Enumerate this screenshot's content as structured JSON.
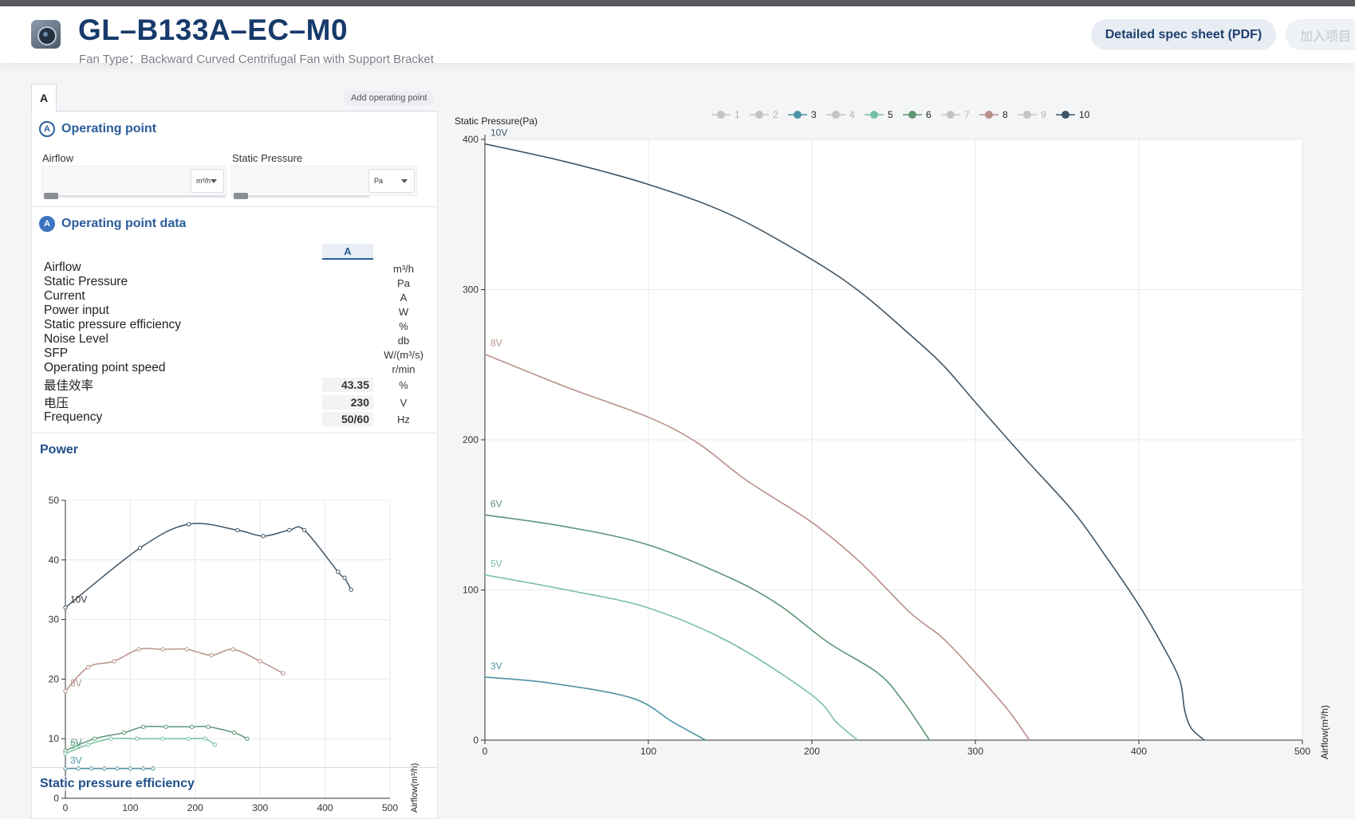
{
  "header": {
    "title": "GL–B133A–EC–M0",
    "subtitle": "Fan Type：Backward Curved Centrifugal Fan with Support Bracket",
    "pdf_button": "Detailed spec sheet (PDF)",
    "add_project_button": "加入项目"
  },
  "tabs": {
    "active": "A",
    "add_label": "Add operating point"
  },
  "operating_point": {
    "badge": "A",
    "heading": "Operating point",
    "airflow_label": "Airflow",
    "airflow_unit": "m³/h",
    "pressure_label": "Static Pressure",
    "pressure_unit": "Pa"
  },
  "op_data": {
    "badge": "A",
    "heading": "Operating point data",
    "column": "A",
    "rows": [
      {
        "label": "Airflow",
        "unit": "m³/h",
        "value": ""
      },
      {
        "label": "Static Pressure",
        "unit": "Pa",
        "value": ""
      },
      {
        "label": "Current",
        "unit": "A",
        "value": ""
      },
      {
        "label": "Power input",
        "unit": "W",
        "value": ""
      },
      {
        "label": "Static pressure efficiency",
        "unit": "%",
        "value": ""
      },
      {
        "label": "Noise Level",
        "unit": "db",
        "value": ""
      },
      {
        "label": "SFP",
        "unit": "W/(m³/s)",
        "value": ""
      },
      {
        "label": "Operating point speed",
        "unit": "r/min",
        "value": ""
      },
      {
        "label": "最佳效率",
        "unit": "%",
        "value": "43.35"
      },
      {
        "label": "电压",
        "unit": "V",
        "value": "230"
      },
      {
        "label": "Frequency",
        "unit": "Hz",
        "value": "50/60"
      }
    ]
  },
  "power_section": {
    "heading": "Power"
  },
  "efficiency_section": {
    "heading": "Static pressure efficiency"
  },
  "colors": {
    "10V": "#3f5566",
    "8V": "#b8908a",
    "6V": "#5e9575",
    "5V": "#79c0a2",
    "3V": "#4e93a6",
    "inactive": "#c4c4c4"
  },
  "chart_data": [
    {
      "type": "line",
      "title": "",
      "ylabel": "Static Pressure(Pa)",
      "xlabel": "Airflow(m³/h)",
      "xlim": [
        0,
        500
      ],
      "ylim": [
        0,
        400
      ],
      "xticks": [
        0,
        100,
        200,
        300,
        400,
        500
      ],
      "yticks": [
        0,
        100,
        200,
        300,
        400
      ],
      "grid": true,
      "legend": {
        "placement": "top-center",
        "entries": [
          {
            "label": "1",
            "active": false
          },
          {
            "label": "2",
            "active": false
          },
          {
            "label": "3",
            "active": true
          },
          {
            "label": "4",
            "active": false
          },
          {
            "label": "5",
            "active": true
          },
          {
            "label": "6",
            "active": true
          },
          {
            "label": "7",
            "active": false
          },
          {
            "label": "8",
            "active": true
          },
          {
            "label": "9",
            "active": false
          },
          {
            "label": "10",
            "active": true
          }
        ]
      },
      "series": [
        {
          "name": "10V",
          "legend": "10",
          "points": [
            [
              0,
              397
            ],
            [
              50,
              385
            ],
            [
              100,
              370
            ],
            [
              150,
              350
            ],
            [
              200,
              320
            ],
            [
              230,
              298
            ],
            [
              260,
              270
            ],
            [
              280,
              250
            ],
            [
              300,
              225
            ],
            [
              330,
              188
            ],
            [
              360,
              152
            ],
            [
              380,
              122
            ],
            [
              400,
              90
            ],
            [
              415,
              62
            ],
            [
              425,
              40
            ],
            [
              428,
              20
            ],
            [
              432,
              8
            ],
            [
              440,
              0
            ]
          ]
        },
        {
          "name": "8V",
          "legend": "8",
          "points": [
            [
              0,
              257
            ],
            [
              50,
              235
            ],
            [
              100,
              215
            ],
            [
              130,
              198
            ],
            [
              160,
              173
            ],
            [
              200,
              145
            ],
            [
              230,
              118
            ],
            [
              260,
              85
            ],
            [
              280,
              68
            ],
            [
              300,
              45
            ],
            [
              320,
              20
            ],
            [
              333,
              0
            ]
          ]
        },
        {
          "name": "6V",
          "legend": "6",
          "points": [
            [
              0,
              150
            ],
            [
              50,
              142
            ],
            [
              100,
              130
            ],
            [
              150,
              108
            ],
            [
              180,
              90
            ],
            [
              210,
              65
            ],
            [
              240,
              45
            ],
            [
              255,
              27
            ],
            [
              272,
              0
            ]
          ]
        },
        {
          "name": "5V",
          "legend": "5",
          "points": [
            [
              0,
              110
            ],
            [
              50,
              100
            ],
            [
              100,
              88
            ],
            [
              150,
              65
            ],
            [
              200,
              30
            ],
            [
              215,
              12
            ],
            [
              228,
              0
            ]
          ]
        },
        {
          "name": "3V",
          "legend": "3",
          "points": [
            [
              0,
              42
            ],
            [
              40,
              38
            ],
            [
              90,
              28
            ],
            [
              115,
              12
            ],
            [
              135,
              0
            ]
          ]
        }
      ]
    },
    {
      "type": "line",
      "title": "",
      "xlabel": "Airflow(m³/h)",
      "ylabel": "",
      "xlim": [
        0,
        500
      ],
      "ylim": [
        0,
        50
      ],
      "xticks": [
        0,
        100,
        200,
        300,
        400,
        500
      ],
      "yticks": [
        0,
        10,
        20,
        30,
        40,
        50
      ],
      "grid": true,
      "series": [
        {
          "name": "10V",
          "points": [
            [
              0,
              32
            ],
            [
              115,
              42
            ],
            [
              190,
              46
            ],
            [
              265,
              45
            ],
            [
              305,
              44
            ],
            [
              345,
              45
            ],
            [
              368,
              45
            ],
            [
              420,
              38
            ],
            [
              430,
              37
            ],
            [
              440,
              35
            ]
          ]
        },
        {
          "name": "8V",
          "points": [
            [
              0,
              18
            ],
            [
              35,
              22
            ],
            [
              75,
              23
            ],
            [
              113,
              25
            ],
            [
              150,
              25
            ],
            [
              187,
              25
            ],
            [
              225,
              24
            ],
            [
              258,
              25
            ],
            [
              300,
              23
            ],
            [
              335,
              21
            ]
          ]
        },
        {
          "name": "6V",
          "points": [
            [
              0,
              8
            ],
            [
              45,
              10
            ],
            [
              90,
              11
            ],
            [
              120,
              12
            ],
            [
              155,
              12
            ],
            [
              195,
              12
            ],
            [
              220,
              12
            ],
            [
              260,
              11
            ],
            [
              280,
              10
            ]
          ]
        },
        {
          "name": "5V",
          "points": [
            [
              0,
              7.5
            ],
            [
              35,
              9
            ],
            [
              70,
              10
            ],
            [
              110,
              10
            ],
            [
              150,
              10
            ],
            [
              190,
              10
            ],
            [
              215,
              10
            ],
            [
              230,
              9
            ]
          ]
        },
        {
          "name": "3V",
          "points": [
            [
              0,
              5
            ],
            [
              20,
              5
            ],
            [
              40,
              5
            ],
            [
              60,
              5
            ],
            [
              80,
              5
            ],
            [
              100,
              5
            ],
            [
              120,
              5
            ],
            [
              135,
              5
            ]
          ]
        }
      ]
    }
  ]
}
